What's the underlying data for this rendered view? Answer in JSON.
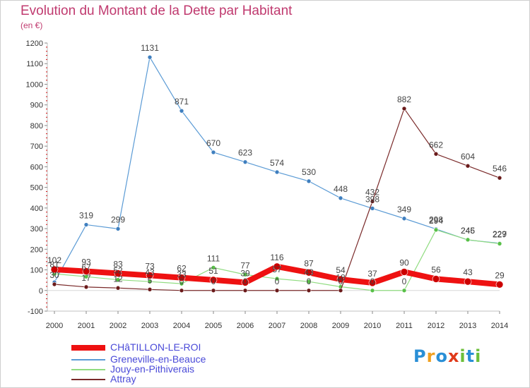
{
  "title": "Evolution du Montant de la Dette par Habitant",
  "unit": "(en €)",
  "colors": {
    "title": "#c03a6f",
    "legend_text": "#4a4ad8",
    "axis": "#c0c0c0",
    "tick_minor": "#d01010"
  },
  "chart_data": {
    "type": "line",
    "title": "Evolution du Montant de la Dette par Habitant",
    "ylabel": "(en €)",
    "xlabel": "",
    "ylim": [
      -100,
      1200
    ],
    "yticks": [
      -100,
      0,
      100,
      200,
      300,
      400,
      500,
      600,
      700,
      800,
      900,
      1000,
      1100,
      1200
    ],
    "x": [
      "2000",
      "2001",
      "2002",
      "2003",
      "2004",
      "2005",
      "2006",
      "2007",
      "2008",
      "2009",
      "2010",
      "2011",
      "2012",
      "2013",
      "2014"
    ],
    "grid": false,
    "legend_position": "bottom-left",
    "series": [
      {
        "name": "Greneville-en-Beauce",
        "color": "#5b9bd5",
        "marker": "#3f7fbf",
        "width": 1.2,
        "values": [
          40,
          319,
          299,
          1131,
          871,
          670,
          623,
          574,
          530,
          448,
          398,
          349,
          298,
          245,
          229
        ]
      },
      {
        "name": "Jouy-en-Pithiverais",
        "color": "#90dc80",
        "marker": "#58c048",
        "width": 1.2,
        "values": [
          81,
          67,
          52,
          43,
          33,
          111,
          77,
          57,
          43,
          18,
          0,
          0,
          294,
          246,
          227
        ]
      },
      {
        "name": "Attray",
        "color": "#7a2a2a",
        "marker": "#6a1a1a",
        "width": 1.2,
        "values": [
          30,
          17,
          12,
          5,
          0,
          0,
          0,
          0,
          0,
          0,
          432,
          882,
          662,
          604,
          546
        ]
      },
      {
        "name": "CHâTILLON-LE-ROI",
        "color": "#ee1111",
        "marker": "#cc0000",
        "width": 8,
        "values": [
          102,
          93,
          83,
          73,
          62,
          51,
          39,
          116,
          87,
          54,
          37,
          90,
          56,
          43,
          29
        ]
      }
    ],
    "data_labels": [
      {
        "series": 0,
        "labels": [
          "",
          "319",
          "299",
          "1131",
          "871",
          "670",
          "623",
          "574",
          "530",
          "448",
          "398",
          "349",
          "298",
          "245",
          "229"
        ]
      },
      {
        "series": 1,
        "labels": [
          "81",
          "67",
          "52",
          "43",
          "33",
          "111",
          "77",
          "57",
          "43",
          "18",
          "0",
          "0",
          "294",
          "246",
          "227"
        ]
      },
      {
        "series": 2,
        "labels": [
          "30",
          "17",
          "12",
          "5",
          "0",
          "0",
          "0",
          "0",
          "0",
          "0",
          "432",
          "882",
          "662",
          "604",
          "546"
        ]
      },
      {
        "series": 3,
        "labels": [
          "102",
          "93",
          "83",
          "73",
          "62",
          "51",
          "39",
          "116",
          "87",
          "54",
          "37",
          "90",
          "56",
          "43",
          "29"
        ]
      }
    ]
  },
  "legend": [
    {
      "label": "CHâTILLON-LE-ROI",
      "color": "#ee1111",
      "thickness": 8
    },
    {
      "label": "Greneville-en-Beauce",
      "color": "#5b9bd5",
      "thickness": 2
    },
    {
      "label": "Jouy-en-Pithiverais",
      "color": "#90dc80",
      "thickness": 2
    },
    {
      "label": "Attray",
      "color": "#7a2a2a",
      "thickness": 2
    }
  ],
  "logo": {
    "letters": [
      "P",
      "r",
      "o",
      "x",
      "i",
      "t",
      "i"
    ],
    "colors": [
      "#2a8fd6",
      "#f0a020",
      "#2a8fd6",
      "#e03a1a",
      "#6cbf3a",
      "#2a8fd6",
      "#6cbf3a"
    ]
  }
}
